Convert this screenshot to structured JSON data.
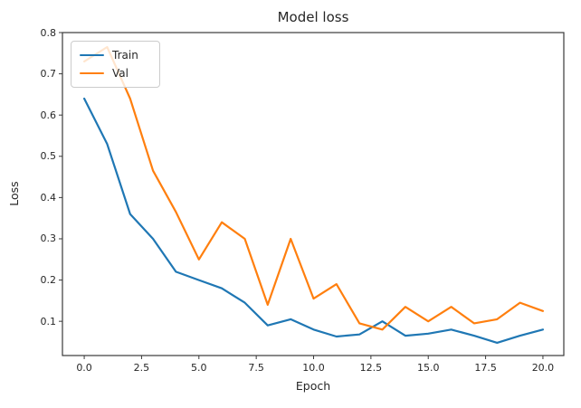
{
  "colors": {
    "background": "#ffffff",
    "spine": "#3a3a3a",
    "tick": "#3a3a3a",
    "text": "#262626",
    "train": "#1f77b4",
    "val": "#ff7f0e"
  },
  "chart_data": {
    "type": "line",
    "title": "Model loss",
    "xlabel": "Epoch",
    "ylabel": "Loss",
    "grid": false,
    "legend_position": "upper left",
    "x": [
      0,
      1,
      2,
      3,
      4,
      5,
      6,
      7,
      8,
      9,
      10,
      11,
      12,
      13,
      14,
      15,
      16,
      17,
      18,
      19,
      20
    ],
    "series": [
      {
        "name": "Train",
        "color": "#1f77b4",
        "values": [
          0.64,
          0.53,
          0.36,
          0.3,
          0.22,
          0.2,
          0.18,
          0.145,
          0.09,
          0.105,
          0.08,
          0.063,
          0.068,
          0.1,
          0.065,
          0.07,
          0.08,
          0.065,
          0.048,
          0.065,
          0.08
        ]
      },
      {
        "name": "Val",
        "color": "#ff7f0e",
        "values": [
          0.73,
          0.765,
          0.64,
          0.465,
          0.365,
          0.25,
          0.34,
          0.3,
          0.14,
          0.3,
          0.155,
          0.19,
          0.095,
          0.08,
          0.135,
          0.1,
          0.135,
          0.095,
          0.105,
          0.145,
          0.125
        ]
      }
    ],
    "xticks": [
      0.0,
      2.5,
      5.0,
      7.5,
      10.0,
      12.5,
      15.0,
      17.5,
      20.0
    ],
    "yticks": [
      0.1,
      0.2,
      0.3,
      0.4,
      0.5,
      0.6,
      0.7,
      0.8
    ],
    "xlim": [
      -0.95,
      20.91
    ],
    "ylim": [
      0.017,
      0.8
    ]
  }
}
